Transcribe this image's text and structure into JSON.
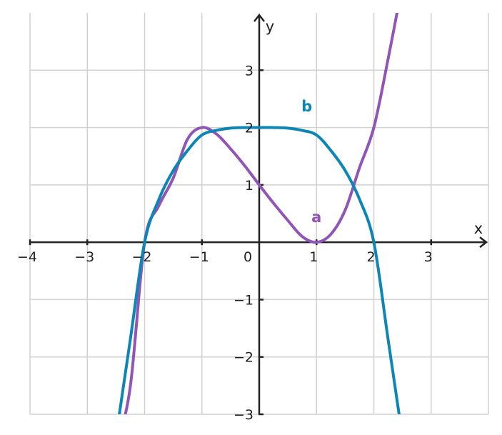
{
  "chart_data": {
    "type": "line",
    "title": "",
    "xlabel": "x",
    "ylabel": "y",
    "xlim": [
      -4,
      4
    ],
    "ylim": [
      -3,
      4
    ],
    "grid": true,
    "x_ticks": [
      {
        "value": -4,
        "label": "−4"
      },
      {
        "value": -3,
        "label": "−3"
      },
      {
        "value": -2,
        "label": "−2"
      },
      {
        "value": -1,
        "label": "−1"
      },
      {
        "value": 0,
        "label": "0"
      },
      {
        "value": 1,
        "label": "1"
      },
      {
        "value": 2,
        "label": "2"
      },
      {
        "value": 3,
        "label": "3"
      }
    ],
    "y_ticks": [
      {
        "value": -3,
        "label": "−3"
      },
      {
        "value": -2,
        "label": "−2"
      },
      {
        "value": -1,
        "label": "−1"
      },
      {
        "value": 1,
        "label": "1"
      },
      {
        "value": 2,
        "label": "2"
      },
      {
        "value": 3,
        "label": "3"
      }
    ],
    "series": [
      {
        "name": "a",
        "color": "#9155b5",
        "points": [
          [
            -2.5,
            -3.62
          ],
          [
            -2.25,
            -2.52
          ],
          [
            -2.0,
            0.0
          ],
          [
            -1.75,
            0.64
          ],
          [
            -1.5,
            1.12
          ],
          [
            -1.25,
            1.8
          ],
          [
            -1.0,
            2.0
          ],
          [
            -0.75,
            1.89
          ],
          [
            -0.5,
            1.63
          ],
          [
            -0.25,
            1.33
          ],
          [
            0.0,
            1.0
          ],
          [
            0.25,
            0.68
          ],
          [
            0.5,
            0.38
          ],
          [
            0.75,
            0.1
          ],
          [
            1.0,
            0.0
          ],
          [
            1.25,
            0.14
          ],
          [
            1.5,
            0.56
          ],
          [
            1.75,
            1.3
          ],
          [
            2.0,
            2.0
          ],
          [
            2.25,
            3.2
          ],
          [
            2.5,
            4.5
          ]
        ],
        "label_at": [
          1.0,
          0.35
        ]
      },
      {
        "name": "b",
        "color": "#0b86b5",
        "points": [
          [
            -2.5,
            -3.4
          ],
          [
            -2.25,
            -1.7
          ],
          [
            -2.0,
            0.0
          ],
          [
            -1.75,
            0.75
          ],
          [
            -1.5,
            1.25
          ],
          [
            -1.25,
            1.6
          ],
          [
            -1.0,
            1.87
          ],
          [
            -0.75,
            1.95
          ],
          [
            -0.5,
            1.99
          ],
          [
            -0.25,
            2.0
          ],
          [
            0.0,
            2.0
          ],
          [
            0.25,
            2.0
          ],
          [
            0.5,
            1.99
          ],
          [
            0.75,
            1.95
          ],
          [
            1.0,
            1.87
          ],
          [
            1.25,
            1.6
          ],
          [
            1.5,
            1.25
          ],
          [
            1.75,
            0.75
          ],
          [
            2.0,
            0.0
          ],
          [
            2.25,
            -1.7
          ],
          [
            2.5,
            -3.4
          ]
        ],
        "label_at": [
          0.83,
          2.28
        ]
      }
    ],
    "axis_color": "#222222",
    "grid_color": "#d2d2d2"
  }
}
